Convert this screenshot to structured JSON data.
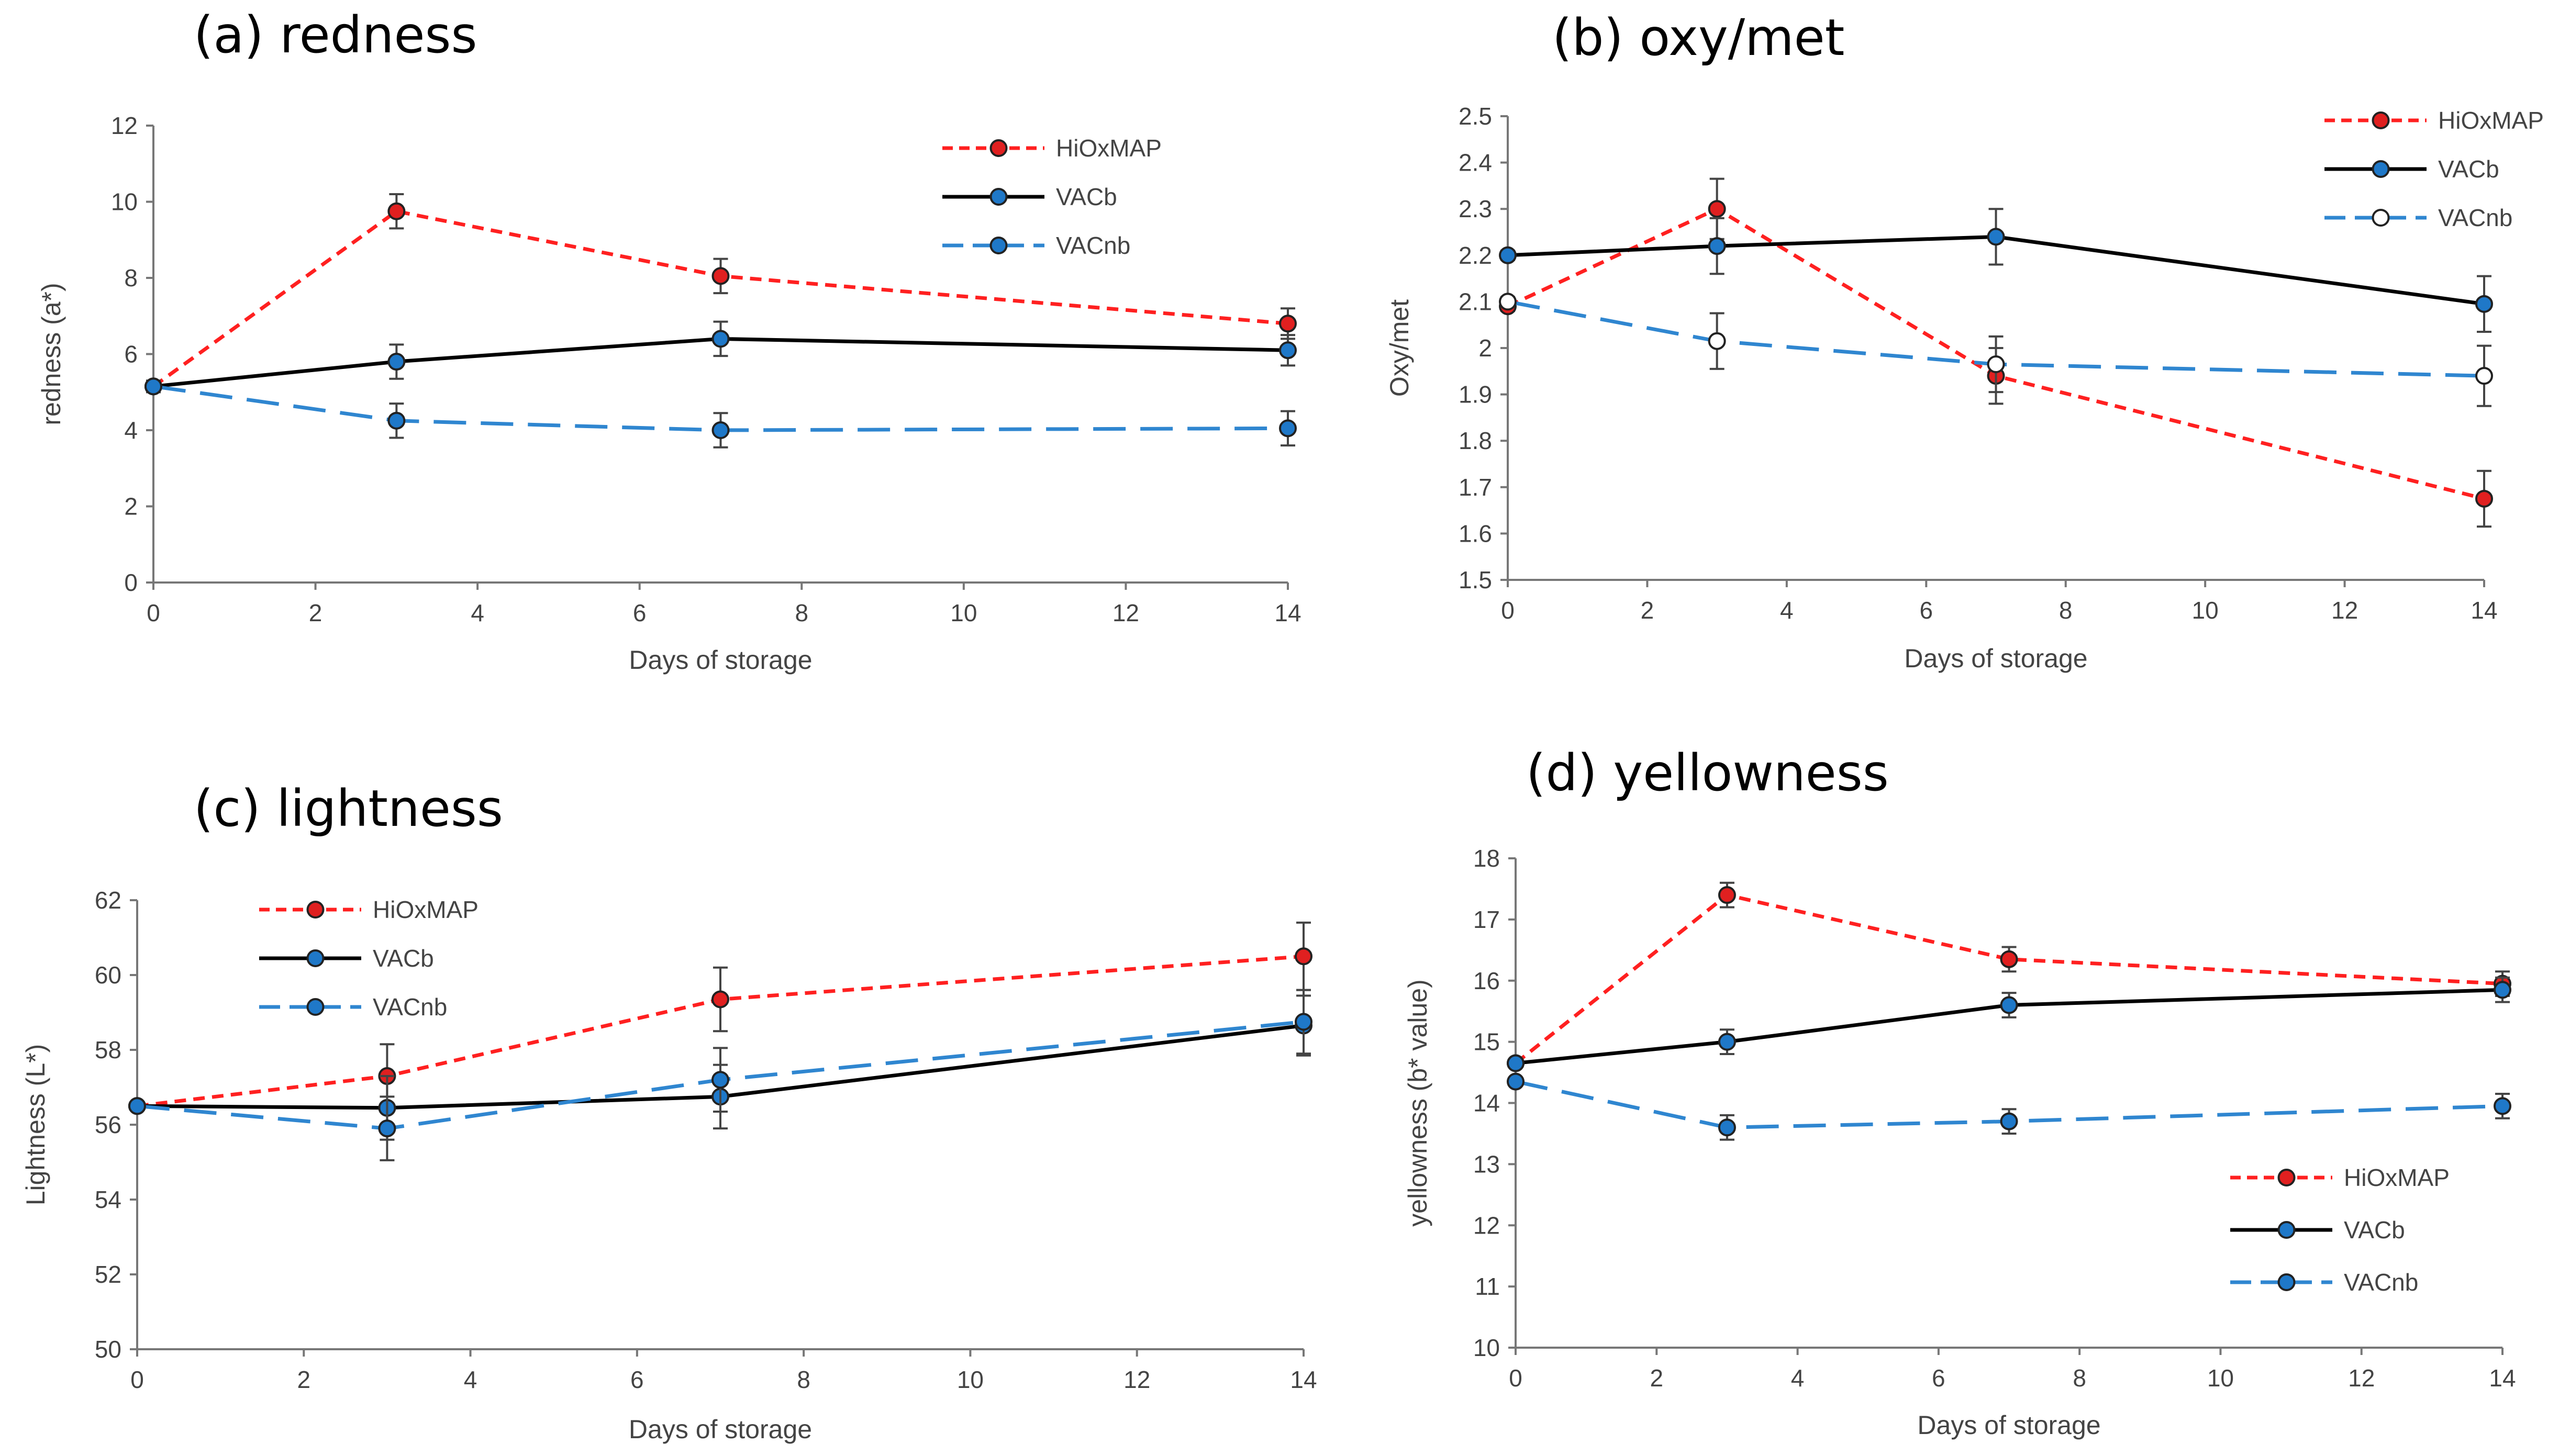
{
  "chart_data": [
    {
      "id": "a",
      "type": "line",
      "title": "(a) redness",
      "xlabel": "Days of storage",
      "ylabel": "redness (a*)",
      "xlim": [
        0,
        14
      ],
      "ylim": [
        0,
        12
      ],
      "xticks": [
        0,
        2,
        4,
        6,
        8,
        10,
        12,
        14
      ],
      "yticks": [
        0,
        2,
        4,
        6,
        8,
        10,
        12
      ],
      "x": [
        0,
        3,
        7,
        14
      ],
      "legend_position": "top-right",
      "series": [
        {
          "name": "HiOxMAP",
          "color": "#ff2020",
          "dash": "dashed",
          "marker_fill": "#e02020",
          "values": [
            5.15,
            9.75,
            8.05,
            6.8
          ],
          "errors": [
            0.15,
            0.45,
            0.45,
            0.4
          ]
        },
        {
          "name": "VACb",
          "color": "#000000",
          "dash": "solid",
          "marker_fill": "#1f78c8",
          "values": [
            5.15,
            5.8,
            6.4,
            6.1
          ],
          "errors": [
            0.15,
            0.45,
            0.45,
            0.4
          ]
        },
        {
          "name": "VACnb",
          "color": "#2f86d0",
          "dash": "longdash",
          "marker_fill": "#1f78c8",
          "values": [
            5.15,
            4.25,
            4.0,
            4.05
          ],
          "errors": [
            0.15,
            0.45,
            0.45,
            0.45
          ]
        }
      ]
    },
    {
      "id": "b",
      "type": "line",
      "title": "(b) oxy/met",
      "xlabel": "Days of storage",
      "ylabel": "Oxy/met",
      "xlim": [
        0,
        14
      ],
      "ylim": [
        1.5,
        2.5
      ],
      "xticks": [
        0,
        2,
        4,
        6,
        8,
        10,
        12,
        14
      ],
      "yticks": [
        "1.5",
        "1.6",
        "1.7",
        "1.8",
        "1.9",
        "2",
        "2.1",
        "2.2",
        "2.3",
        "2.4",
        "2.5"
      ],
      "x": [
        0,
        3,
        7,
        14
      ],
      "legend_position": "top-right",
      "series": [
        {
          "name": "HiOxMAP",
          "color": "#ff2020",
          "dash": "dashed",
          "marker_fill": "#e02020",
          "values": [
            2.09,
            2.3,
            1.94,
            1.675
          ],
          "errors": [
            0.01,
            0.065,
            0.06,
            0.06
          ]
        },
        {
          "name": "VACb",
          "color": "#000000",
          "dash": "solid",
          "marker_fill": "#1f78c8",
          "values": [
            2.2,
            2.22,
            2.24,
            2.095
          ],
          "errors": [
            0.01,
            0.06,
            0.06,
            0.06
          ]
        },
        {
          "name": "VACnb",
          "color": "#2f86d0",
          "dash": "longdash",
          "marker_fill": "#ffffff",
          "values": [
            2.1,
            2.015,
            1.965,
            1.94
          ],
          "errors": [
            0.01,
            0.06,
            0.06,
            0.065
          ]
        }
      ]
    },
    {
      "id": "c",
      "type": "line",
      "title": "(c) lightness",
      "xlabel": "Days of storage",
      "ylabel": "Lightness (L*)",
      "xlim": [
        0,
        14
      ],
      "ylim": [
        50,
        62
      ],
      "xticks": [
        0,
        2,
        4,
        6,
        8,
        10,
        12,
        14
      ],
      "yticks": [
        50,
        52,
        54,
        56,
        58,
        60,
        62
      ],
      "x": [
        0,
        3,
        7,
        14
      ],
      "legend_position": "top-left",
      "series": [
        {
          "name": "HiOxMAP",
          "color": "#ff2020",
          "dash": "dashed",
          "marker_fill": "#e02020",
          "values": [
            56.5,
            57.3,
            59.35,
            60.5
          ],
          "errors": [
            0.1,
            0.85,
            0.85,
            0.9
          ]
        },
        {
          "name": "VACb",
          "color": "#000000",
          "dash": "solid",
          "marker_fill": "#1f78c8",
          "values": [
            56.5,
            56.45,
            56.75,
            58.65
          ],
          "errors": [
            0.1,
            0.85,
            0.85,
            0.8
          ]
        },
        {
          "name": "VACnb",
          "color": "#2f86d0",
          "dash": "longdash",
          "marker_fill": "#1f78c8",
          "values": [
            56.5,
            55.9,
            57.2,
            58.75
          ],
          "errors": [
            0.1,
            0.85,
            0.85,
            0.85
          ]
        }
      ]
    },
    {
      "id": "d",
      "type": "line",
      "title": "(d) yellowness",
      "xlabel": "Days of storage",
      "ylabel": "yellowness (b* value)",
      "xlim": [
        0,
        14
      ],
      "ylim": [
        10,
        18
      ],
      "xticks": [
        0,
        2,
        4,
        6,
        8,
        10,
        12,
        14
      ],
      "yticks": [
        10,
        11,
        12,
        13,
        14,
        15,
        16,
        17,
        18
      ],
      "x": [
        0,
        3,
        7,
        14
      ],
      "legend_position": "bottom-right",
      "series": [
        {
          "name": "HiOxMAP",
          "color": "#ff2020",
          "dash": "dashed",
          "marker_fill": "#e02020",
          "values": [
            14.65,
            17.4,
            16.35,
            15.95
          ],
          "errors": [
            0.05,
            0.2,
            0.2,
            0.2
          ]
        },
        {
          "name": "VACb",
          "color": "#000000",
          "dash": "solid",
          "marker_fill": "#1f78c8",
          "values": [
            14.65,
            15.0,
            15.6,
            15.85
          ],
          "errors": [
            0.05,
            0.2,
            0.2,
            0.2
          ]
        },
        {
          "name": "VACnb",
          "color": "#2f86d0",
          "dash": "longdash",
          "marker_fill": "#1f78c8",
          "values": [
            14.35,
            13.6,
            13.7,
            13.95
          ],
          "errors": [
            0.05,
            0.2,
            0.2,
            0.2
          ]
        }
      ]
    }
  ]
}
